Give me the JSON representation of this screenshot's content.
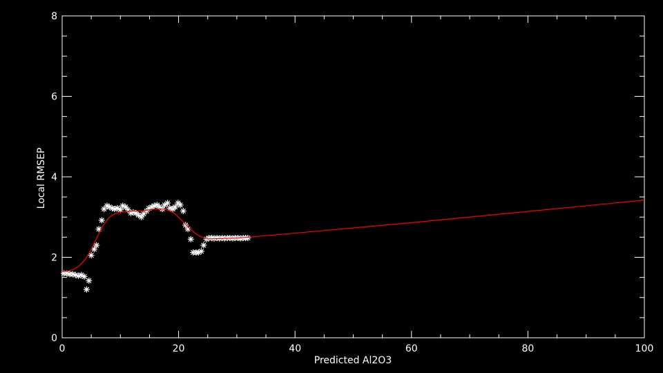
{
  "chart_data": {
    "type": "scatter",
    "title": "",
    "xlabel": "Predicted Al2O3",
    "ylabel": "Local RMSEP",
    "xlim": [
      0,
      100
    ],
    "ylim": [
      0,
      8
    ],
    "x_ticks": [
      0,
      20,
      40,
      60,
      80,
      100
    ],
    "y_ticks": [
      0,
      2,
      4,
      6,
      8
    ],
    "x_minor_step": 5,
    "y_minor_step": 0.5,
    "grid": false,
    "background": "#000000",
    "axis_color": "#ffffff",
    "series": [
      {
        "kind": "scatter",
        "marker": "asterisk",
        "color": "#ffffff",
        "x": [
          0.3,
          0.8,
          1.3,
          1.8,
          2.3,
          2.8,
          3.3,
          3.8,
          4.2,
          4.6,
          5.0,
          5.5,
          5.9,
          6.3,
          6.8,
          7.2,
          7.7,
          8.1,
          8.6,
          9.0,
          9.5,
          10.0,
          10.4,
          10.9,
          11.3,
          11.8,
          12.2,
          12.7,
          13.1,
          13.6,
          14.0,
          14.5,
          14.9,
          15.4,
          15.8,
          16.3,
          16.7,
          17.2,
          17.6,
          18.1,
          18.5,
          19.0,
          19.4,
          19.9,
          20.3,
          20.8,
          21.2,
          21.6,
          22.1,
          22.5,
          23.0,
          23.4,
          23.9,
          24.3,
          24.8,
          25.2,
          25.7,
          26.1,
          26.6,
          27.0,
          27.5,
          27.9,
          28.4,
          28.8,
          29.3,
          29.7,
          30.2,
          30.6,
          31.1,
          31.5,
          31.9
        ],
        "y": [
          1.6,
          1.6,
          1.58,
          1.58,
          1.56,
          1.54,
          1.56,
          1.52,
          1.2,
          1.42,
          2.05,
          2.2,
          2.3,
          2.7,
          2.92,
          3.2,
          3.28,
          3.25,
          3.22,
          3.2,
          3.22,
          3.18,
          3.28,
          3.25,
          3.18,
          3.1,
          3.12,
          3.1,
          3.05,
          3.0,
          3.08,
          3.15,
          3.22,
          3.25,
          3.28,
          3.3,
          3.25,
          3.2,
          3.3,
          3.35,
          3.22,
          3.2,
          3.25,
          3.35,
          3.3,
          3.15,
          2.8,
          2.7,
          2.45,
          2.12,
          2.12,
          2.12,
          2.15,
          2.3,
          2.45,
          2.48,
          2.48,
          2.47,
          2.48,
          2.47,
          2.48,
          2.47,
          2.48,
          2.48,
          2.47,
          2.48,
          2.48,
          2.47,
          2.48,
          2.48,
          2.48
        ]
      },
      {
        "kind": "line",
        "color": "#ff0000",
        "x": [
          0,
          1,
          2,
          3,
          4,
          5,
          6,
          7,
          8,
          9,
          10,
          11,
          12,
          13,
          14,
          15,
          16,
          17,
          18,
          19,
          20,
          21,
          22,
          23,
          24,
          25,
          26,
          28,
          30,
          32,
          40,
          50,
          60,
          70,
          80,
          90,
          100
        ],
        "y": [
          1.65,
          1.66,
          1.7,
          1.8,
          1.95,
          2.2,
          2.5,
          2.78,
          2.98,
          3.08,
          3.12,
          3.14,
          3.15,
          3.15,
          3.16,
          3.18,
          3.2,
          3.2,
          3.18,
          3.12,
          3.0,
          2.85,
          2.7,
          2.58,
          2.5,
          2.46,
          2.46,
          2.47,
          2.48,
          2.5,
          2.6,
          2.73,
          2.86,
          3.0,
          3.14,
          3.28,
          3.42
        ]
      }
    ]
  }
}
